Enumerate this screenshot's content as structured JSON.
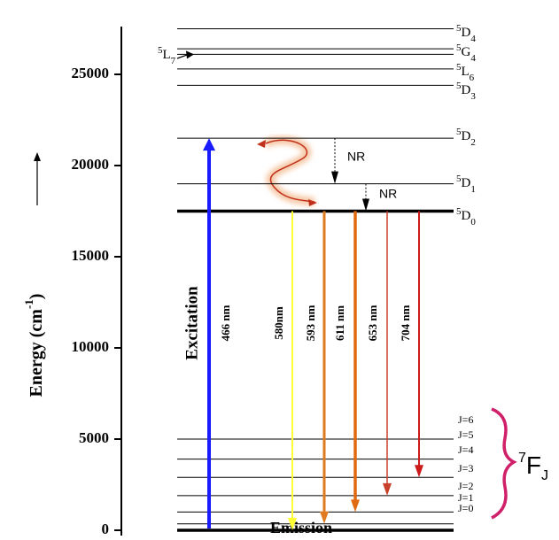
{
  "axis": {
    "label": "Energy (cm",
    "label_sup": "-1",
    "label_end": ")",
    "ylim": [
      0,
      27500
    ],
    "yticks": [
      0,
      5000,
      10000,
      15000,
      20000,
      25000
    ]
  },
  "upper_levels": [
    {
      "sup": "5",
      "term": "D",
      "sub": "4",
      "energy": 27500
    },
    {
      "sup": "5",
      "term": "G",
      "sub": "4",
      "energy": 26400
    },
    {
      "sup": "5",
      "term": "L",
      "sub": "7",
      "energy": 26100
    },
    {
      "sup": "5",
      "term": "L",
      "sub": "6",
      "energy": 25300
    },
    {
      "sup": "5",
      "term": "D",
      "sub": "3",
      "energy": 24400
    },
    {
      "sup": "5",
      "term": "D",
      "sub": "2",
      "energy": 21500
    },
    {
      "sup": "5",
      "term": "D",
      "sub": "1",
      "energy": 19000
    },
    {
      "sup": "5",
      "term": "D",
      "sub": "0",
      "energy": 17500
    }
  ],
  "lower_levels": [
    {
      "label": "J=0",
      "energy": 0
    },
    {
      "label": "J=1",
      "energy": 350
    },
    {
      "label": "J=2",
      "energy": 1000
    },
    {
      "label": "J=3",
      "energy": 1900
    },
    {
      "label": "J=4",
      "energy": 2900
    },
    {
      "label": "J=5",
      "energy": 3900
    },
    {
      "label": "J=6",
      "energy": 5000
    }
  ],
  "ground_term": {
    "sup": "7",
    "term": "F",
    "sub": "J"
  },
  "excitation": {
    "title": "Excitation",
    "label": "466 nm",
    "color": "#1a1aff"
  },
  "emission": {
    "title": "Emission",
    "transitions": [
      {
        "label": "580nm",
        "color": "#ffff33"
      },
      {
        "label": "593 nm",
        "color": "#e07a20"
      },
      {
        "label": "611 nm",
        "color": "#e06a10"
      },
      {
        "label": "653 nm",
        "color": "#c8402a"
      },
      {
        "label": "704 nm",
        "color": "#cc1a1a"
      }
    ]
  },
  "nonradiative": [
    "NR",
    "NR"
  ]
}
